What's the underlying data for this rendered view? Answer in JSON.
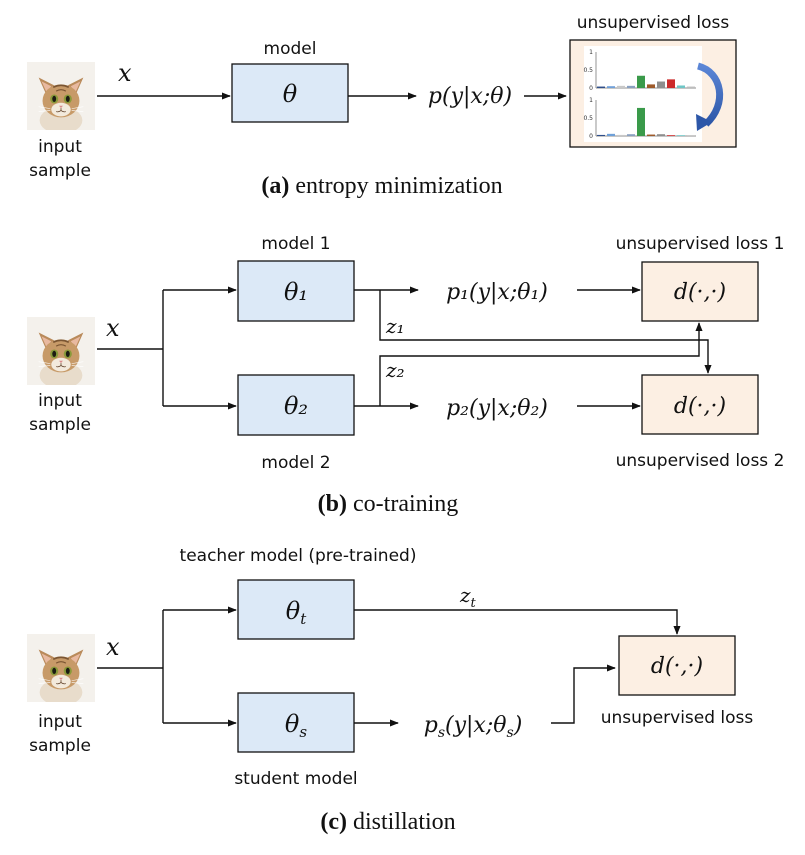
{
  "panel_a": {
    "input_label_1": "input",
    "input_label_2": "sample",
    "x_label": "x",
    "model_label": "model",
    "theta": "θ",
    "output": "p(y|x;θ)",
    "loss_label": "unsupervised loss",
    "histogram_top": {
      "ticks": [
        "1",
        "0.5",
        "0"
      ],
      "values": [
        0.04,
        0.05,
        0.06,
        0.06,
        0.34,
        0.1,
        0.18,
        0.24,
        0.07,
        0.04
      ]
    },
    "histogram_bottom": {
      "ticks": [
        "1",
        "0.5",
        "0"
      ],
      "values": [
        0.03,
        0.06,
        0.03,
        0.05,
        0.78,
        0.04,
        0.05,
        0.02,
        0.02,
        0.02
      ]
    },
    "colors": [
      "#2f4f8a",
      "#6fa0d8",
      "#c8c8c8",
      "#8aa0c0",
      "#3a9a4a",
      "#9e5a2a",
      "#8e8e8e",
      "#cc2b2b",
      "#6fc6c6",
      "#bdbdbd"
    ],
    "caption_bold": "(a)",
    "caption_text": " entropy minimization"
  },
  "panel_b": {
    "input_label_1": "input",
    "input_label_2": "sample",
    "x_label": "x",
    "model1_label": "model 1",
    "model2_label": "model 2",
    "theta1": "θ₁",
    "theta2": "θ₂",
    "output1": "p₁(y|x;θ₁)",
    "output2": "p₂(y|x;θ₂)",
    "z1": "z₁",
    "z2": "z₂",
    "loss1_label": "unsupervised loss 1",
    "loss2_label": "unsupervised loss 2",
    "dist": "d(·,·)",
    "caption_bold": "(b)",
    "caption_text": " co-training"
  },
  "panel_c": {
    "input_label_1": "input",
    "input_label_2": "sample",
    "x_label": "x",
    "teacher_label": "teacher model (pre-trained)",
    "student_label": "student model",
    "theta_t": "θt",
    "theta_s": "θs",
    "zt": "zt",
    "output_s": "ps(y|x;θs)",
    "dist": "d(·,·)",
    "loss_label": "unsupervised loss",
    "caption_bold": "(c)",
    "caption_text": " distillation"
  },
  "icons": {
    "cat": "cat-photo-icon",
    "curved_arrow": "curved-arrow-icon"
  },
  "accent_colors": {
    "model_box": "#dce9f7",
    "loss_box": "#fcefe3",
    "curved_arrow": "#3a66b8"
  }
}
